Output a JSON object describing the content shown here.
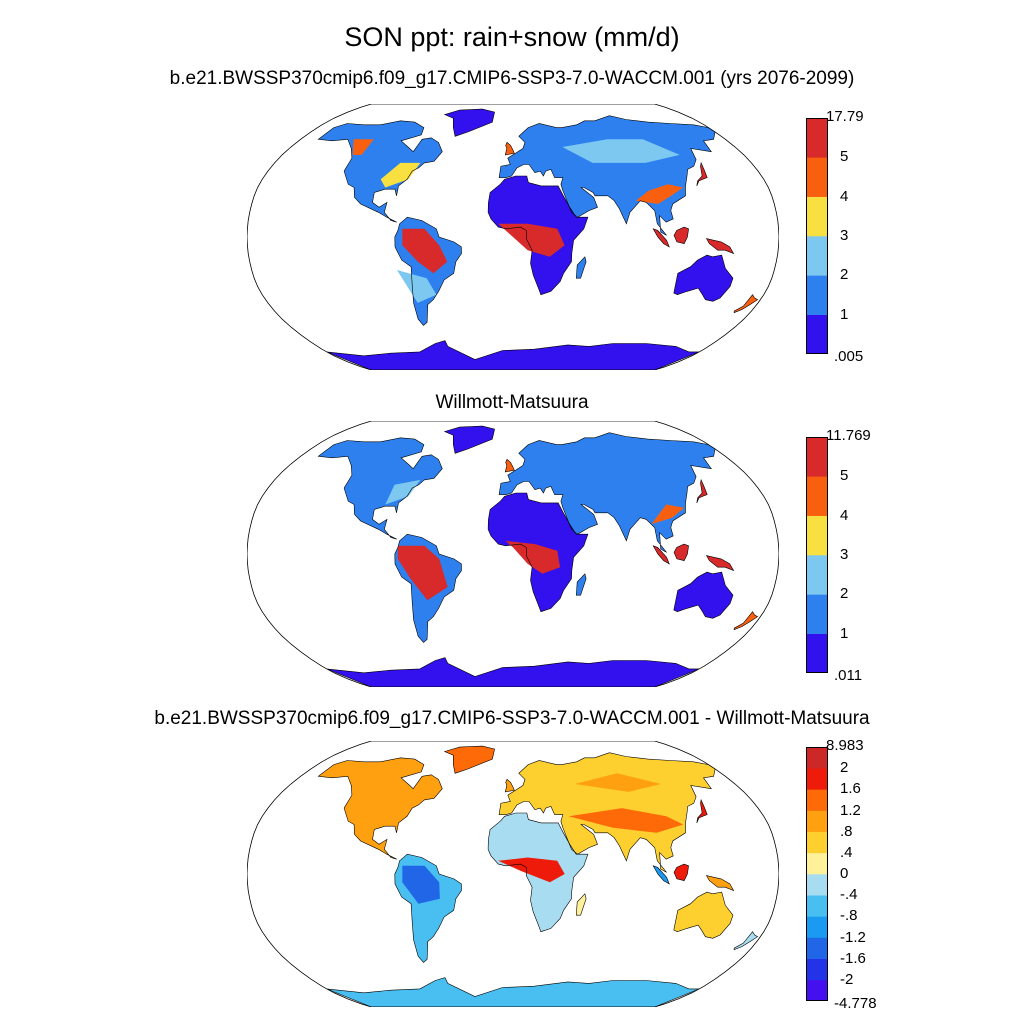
{
  "title": "SON ppt: rain+snow (mm/d)",
  "panels": [
    {
      "id": "model",
      "title": "b.e21.BWSSP370cmip6.f09_g17.CMIP6-SSP3-7.0-WACCM.001 (yrs 2076-2099)",
      "colorbar": {
        "labels": [
          "17.79",
          "5",
          "4",
          "3",
          "2",
          "1",
          ".005"
        ],
        "colors": [
          "#3311ee",
          "#2e80ee",
          "#7cc8f0",
          "#f8e040",
          "#f86010",
          "#d82a2a"
        ]
      }
    },
    {
      "id": "observed",
      "title": "Willmott-Matsuura",
      "colorbar": {
        "labels": [
          "11.769",
          "5",
          "4",
          "3",
          "2",
          "1",
          ".011"
        ],
        "colors": [
          "#3311ee",
          "#2e80ee",
          "#7cc8f0",
          "#f8e040",
          "#f86010",
          "#d82a2a"
        ]
      }
    },
    {
      "id": "difference",
      "title": "b.e21.BWSSP370cmip6.f09_g17.CMIP6-SSP3-7.0-WACCM.001 - Willmott-Matsuura",
      "colorbar": {
        "labels": [
          "8.983",
          "2",
          "1.6",
          "1.2",
          ".8",
          ".4",
          "0",
          "-.4",
          "-.8",
          "-1.2",
          "-1.6",
          "-2",
          "-4.778"
        ],
        "colors": [
          "#4411ee",
          "#2233e8",
          "#2266e8",
          "#1a9af0",
          "#48bff0",
          "#a8dcf0",
          "#fff09a",
          "#fdd030",
          "#ffa010",
          "#ff6a08",
          "#ee1a0a",
          "#cc2828"
        ]
      }
    }
  ]
}
